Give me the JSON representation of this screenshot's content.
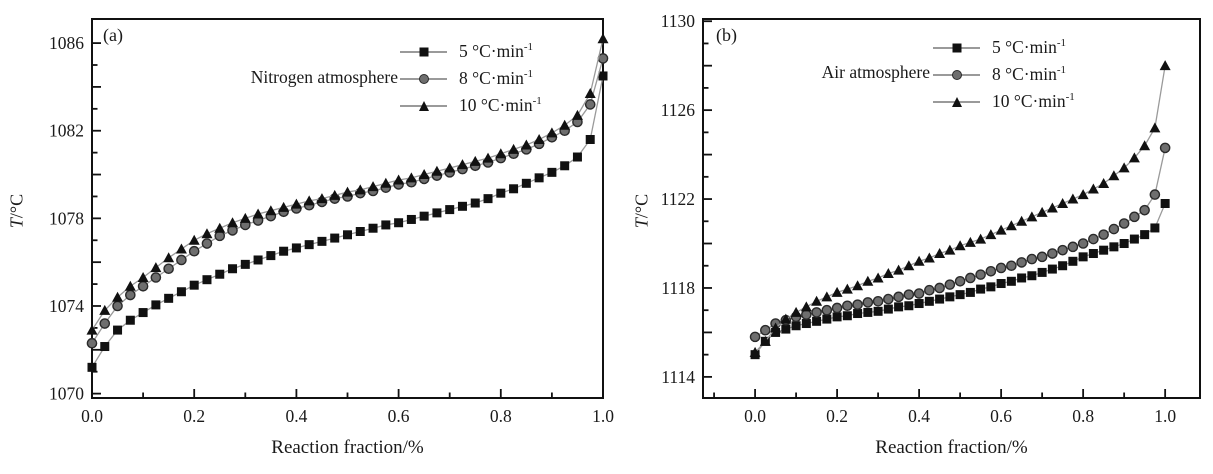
{
  "figure": {
    "background": "#ffffff",
    "text_color": "#1a1a1a",
    "border_color": "#111111",
    "line_color": "#9a9a9a"
  },
  "chart_data": [
    {
      "type": "line",
      "panel_label": "(a)",
      "annotation": "Nitrogen atmosphere",
      "xlabel": "Reaction fraction/%",
      "ylabel_italic": "T",
      "ylabel_rest": "/°C",
      "grid": false,
      "legend_position": "top-right-inside",
      "xlim": [
        0,
        1.0
      ],
      "ylim": [
        1069.8,
        1087.1
      ],
      "xticks": {
        "labels": [
          "0.0",
          "0.2",
          "0.4",
          "0.6",
          "0.8",
          "1.0"
        ],
        "values": [
          0,
          0.2,
          0.4,
          0.6,
          0.8,
          1.0
        ],
        "minor": [
          0.1,
          0.3,
          0.5,
          0.7,
          0.9
        ]
      },
      "yticks": {
        "labels": [
          "1070",
          "1074",
          "1078",
          "1082",
          "1086"
        ],
        "values": [
          1070,
          1074,
          1078,
          1082,
          1086
        ]
      },
      "x": [
        0,
        0.025,
        0.05,
        0.075,
        0.1,
        0.125,
        0.15,
        0.175,
        0.2,
        0.225,
        0.25,
        0.275,
        0.3,
        0.325,
        0.35,
        0.375,
        0.4,
        0.425,
        0.45,
        0.475,
        0.5,
        0.525,
        0.55,
        0.575,
        0.6,
        0.625,
        0.65,
        0.675,
        0.7,
        0.725,
        0.75,
        0.775,
        0.8,
        0.825,
        0.85,
        0.875,
        0.9,
        0.925,
        0.95,
        0.975,
        1.0
      ],
      "series": [
        {
          "name": "5 °C·min⁻¹",
          "label_base": "5 °C·min",
          "label_sup": "-1",
          "marker": "square",
          "color": "#111111",
          "values": [
            1071.2,
            1072.15,
            1072.9,
            1073.35,
            1073.7,
            1074.05,
            1074.35,
            1074.65,
            1074.95,
            1075.2,
            1075.45,
            1075.7,
            1075.9,
            1076.1,
            1076.3,
            1076.5,
            1076.65,
            1076.8,
            1076.95,
            1077.1,
            1077.25,
            1077.4,
            1077.55,
            1077.7,
            1077.8,
            1077.95,
            1078.1,
            1078.25,
            1078.4,
            1078.55,
            1078.7,
            1078.9,
            1079.15,
            1079.35,
            1079.6,
            1079.85,
            1080.1,
            1080.4,
            1080.8,
            1081.6,
            1084.5
          ]
        },
        {
          "name": "8 °C·min⁻¹",
          "label_base": "8 °C·min",
          "label_sup": "-1",
          "marker": "circle",
          "color": "#6e6e6e",
          "values": [
            1072.3,
            1073.2,
            1074.0,
            1074.5,
            1074.9,
            1075.3,
            1075.7,
            1076.1,
            1076.5,
            1076.85,
            1077.2,
            1077.45,
            1077.7,
            1077.9,
            1078.1,
            1078.3,
            1078.45,
            1078.6,
            1078.75,
            1078.9,
            1079.0,
            1079.15,
            1079.25,
            1079.4,
            1079.55,
            1079.65,
            1079.8,
            1079.95,
            1080.1,
            1080.25,
            1080.4,
            1080.55,
            1080.75,
            1080.95,
            1081.15,
            1081.4,
            1081.7,
            1082.0,
            1082.4,
            1083.2,
            1085.3
          ]
        },
        {
          "name": "10 °C·min⁻¹",
          "label_base": "10 °C·min",
          "label_sup": "-1",
          "marker": "triangle",
          "color": "#111111",
          "values": [
            1072.9,
            1073.8,
            1074.4,
            1074.9,
            1075.3,
            1075.75,
            1076.2,
            1076.6,
            1077.0,
            1077.3,
            1077.55,
            1077.8,
            1078.0,
            1078.2,
            1078.35,
            1078.5,
            1078.65,
            1078.8,
            1078.9,
            1079.05,
            1079.2,
            1079.3,
            1079.45,
            1079.6,
            1079.75,
            1079.85,
            1080.0,
            1080.15,
            1080.3,
            1080.45,
            1080.6,
            1080.75,
            1080.95,
            1081.15,
            1081.35,
            1081.6,
            1081.9,
            1082.25,
            1082.7,
            1083.7,
            1086.2
          ]
        }
      ]
    },
    {
      "type": "line",
      "panel_label": "(b)",
      "annotation": "Air atmosphere",
      "xlabel": "Reaction fraction/%",
      "ylabel_italic": "T",
      "ylabel_rest": "/°C",
      "grid": false,
      "legend_position": "top-right-inside",
      "xlim": [
        -0.127,
        1.085
      ],
      "ylim": [
        1113.05,
        1130.1
      ],
      "xticks": {
        "labels": [
          "0.0",
          "0.2",
          "0.4",
          "0.6",
          "0.8",
          "1.0"
        ],
        "values": [
          0,
          0.2,
          0.4,
          0.6,
          0.8,
          1.0
        ],
        "minor": [
          -0.1,
          0.1,
          0.3,
          0.5,
          0.7,
          0.9
        ]
      },
      "yticks": {
        "labels": [
          "1114",
          "1118",
          "1122",
          "1126",
          "1130"
        ],
        "values": [
          1114,
          1118,
          1122,
          1126,
          1130
        ]
      },
      "x": [
        0,
        0.025,
        0.05,
        0.075,
        0.1,
        0.125,
        0.15,
        0.175,
        0.2,
        0.225,
        0.25,
        0.275,
        0.3,
        0.325,
        0.35,
        0.375,
        0.4,
        0.425,
        0.45,
        0.475,
        0.5,
        0.525,
        0.55,
        0.575,
        0.6,
        0.625,
        0.65,
        0.675,
        0.7,
        0.725,
        0.75,
        0.775,
        0.8,
        0.825,
        0.85,
        0.875,
        0.9,
        0.925,
        0.95,
        0.975,
        1.0
      ],
      "series": [
        {
          "name": "5 °C·min⁻¹",
          "label_base": "5 °C·min",
          "label_sup": "-1",
          "marker": "square",
          "color": "#111111",
          "values": [
            1115.0,
            1115.6,
            1116.0,
            1116.15,
            1116.3,
            1116.4,
            1116.5,
            1116.6,
            1116.7,
            1116.75,
            1116.85,
            1116.9,
            1116.95,
            1117.05,
            1117.15,
            1117.2,
            1117.3,
            1117.4,
            1117.5,
            1117.6,
            1117.7,
            1117.8,
            1117.95,
            1118.05,
            1118.2,
            1118.3,
            1118.45,
            1118.55,
            1118.7,
            1118.85,
            1119.0,
            1119.2,
            1119.4,
            1119.55,
            1119.7,
            1119.85,
            1120.0,
            1120.2,
            1120.4,
            1120.7,
            1121.8
          ]
        },
        {
          "name": "8 °C·min⁻¹",
          "label_base": "8 °C·min",
          "label_sup": "-1",
          "marker": "circle",
          "color": "#6e6e6e",
          "values": [
            1115.8,
            1116.1,
            1116.4,
            1116.55,
            1116.7,
            1116.8,
            1116.9,
            1117.0,
            1117.1,
            1117.2,
            1117.25,
            1117.35,
            1117.4,
            1117.5,
            1117.6,
            1117.7,
            1117.75,
            1117.9,
            1118.0,
            1118.15,
            1118.3,
            1118.45,
            1118.6,
            1118.75,
            1118.9,
            1119.0,
            1119.15,
            1119.3,
            1119.4,
            1119.55,
            1119.7,
            1119.85,
            1120.0,
            1120.2,
            1120.4,
            1120.65,
            1120.9,
            1121.2,
            1121.5,
            1122.2,
            1124.3
          ]
        },
        {
          "name": "10 °C·min⁻¹",
          "label_base": "10 °C·min",
          "label_sup": "-1",
          "marker": "triangle",
          "color": "#111111",
          "values": [
            1115.1,
            1115.6,
            1116.2,
            1116.6,
            1116.9,
            1117.15,
            1117.4,
            1117.6,
            1117.8,
            1117.95,
            1118.1,
            1118.3,
            1118.45,
            1118.65,
            1118.8,
            1119.0,
            1119.2,
            1119.35,
            1119.55,
            1119.7,
            1119.9,
            1120.05,
            1120.2,
            1120.4,
            1120.6,
            1120.8,
            1121.0,
            1121.2,
            1121.4,
            1121.6,
            1121.8,
            1122.0,
            1122.2,
            1122.45,
            1122.7,
            1123.05,
            1123.4,
            1123.85,
            1124.4,
            1125.2,
            1128.0
          ]
        }
      ]
    }
  ]
}
